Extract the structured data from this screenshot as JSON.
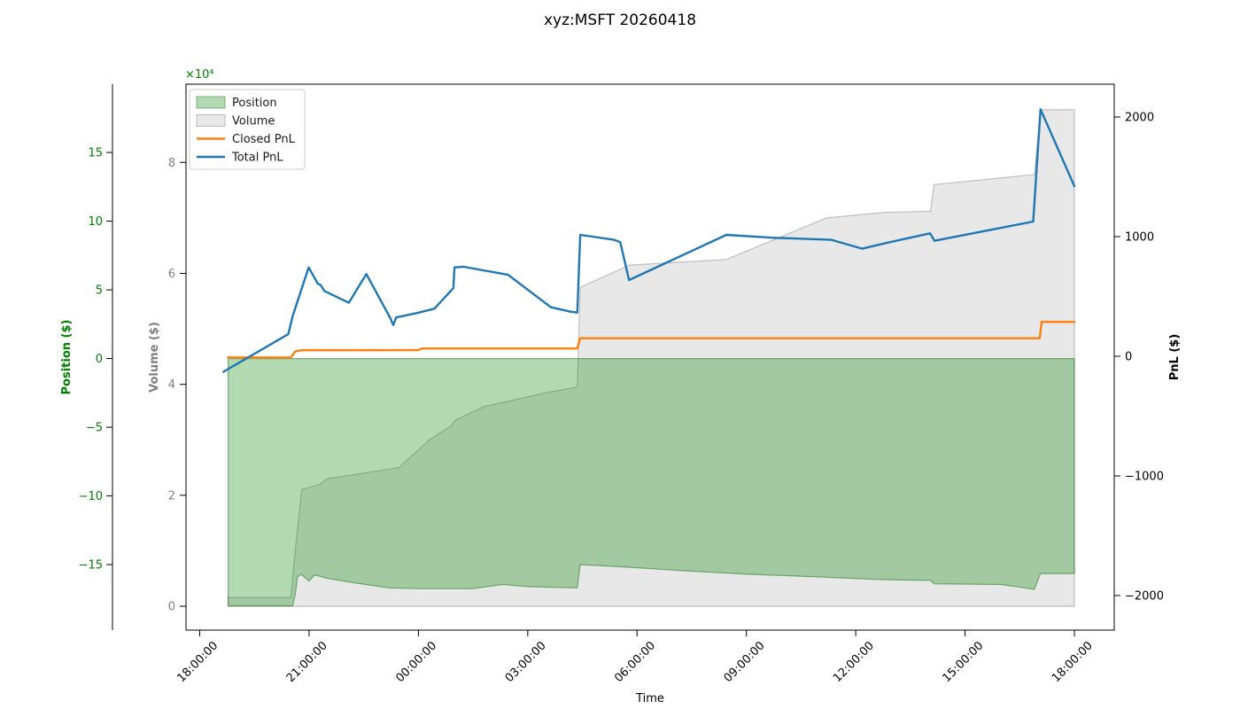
{
  "title": "xyz:MSFT 20260418",
  "chart_data": {
    "type": "area+line",
    "time_note": "x values are hours after midnight of day 1; 42.0 = 18:00:00 next day",
    "axes": {
      "x": {
        "label": "Time",
        "domain": [
          17.623,
          43.093
        ],
        "ticks": [
          [
            18,
            "18:00:00"
          ],
          [
            21,
            "21:00:00"
          ],
          [
            24,
            "00:00:00"
          ],
          [
            27,
            "03:00:00"
          ],
          [
            30,
            "06:00:00"
          ],
          [
            33,
            "09:00:00"
          ],
          [
            36,
            "12:00:00"
          ],
          [
            39,
            "15:00:00"
          ],
          [
            42,
            "18:00:00"
          ]
        ]
      },
      "position": {
        "label": "Position ($)",
        "color": "#008000",
        "domain": [
          -19.77,
          19.97
        ],
        "ticks": [
          [
            -15,
            "−15"
          ],
          [
            -10,
            "−10"
          ],
          [
            -5,
            "−5"
          ],
          [
            0,
            "0"
          ],
          [
            5,
            "5"
          ],
          [
            10,
            "10"
          ],
          [
            15,
            "15"
          ]
        ]
      },
      "volume": {
        "label": "Volume ($)",
        "color": "#808080",
        "domain": [
          -0.43,
          9.41
        ],
        "offset_text": "×10⁴",
        "offset_color": "#008000",
        "ticks": [
          [
            0,
            "0"
          ],
          [
            2,
            "2"
          ],
          [
            4,
            "4"
          ],
          [
            6,
            "6"
          ],
          [
            8,
            "8"
          ]
        ]
      },
      "pnl": {
        "label": "PnL ($)",
        "color": "#000000",
        "domain": [
          -2289,
          2274
        ],
        "ticks": [
          [
            -2000,
            "−2000"
          ],
          [
            -1000,
            "−1000"
          ],
          [
            0,
            "0"
          ],
          [
            1000,
            "1000"
          ],
          [
            2000,
            "2000"
          ]
        ]
      }
    },
    "series": [
      {
        "name": "Volume",
        "kind": "area",
        "axis": "volume",
        "baseline": 0,
        "fill": "rgba(128,128,128,0.18)",
        "stroke": "rgba(128,128,128,0.45)",
        "stroke_width": 1.2,
        "points": [
          [
            18.78,
            0.16
          ],
          [
            20.5,
            0.16
          ],
          [
            20.62,
            1.0
          ],
          [
            20.8,
            2.1
          ],
          [
            21.3,
            2.2
          ],
          [
            21.5,
            2.3
          ],
          [
            23.0,
            2.45
          ],
          [
            23.47,
            2.5
          ],
          [
            23.8,
            2.7
          ],
          [
            24.3,
            3.0
          ],
          [
            24.9,
            3.25
          ],
          [
            25.0,
            3.35
          ],
          [
            25.8,
            3.6
          ],
          [
            26.5,
            3.7
          ],
          [
            27.5,
            3.85
          ],
          [
            28.36,
            3.95
          ],
          [
            28.44,
            5.75
          ],
          [
            29.8,
            6.15
          ],
          [
            32.45,
            6.25
          ],
          [
            35.2,
            7.0
          ],
          [
            36.8,
            7.1
          ],
          [
            38.05,
            7.12
          ],
          [
            38.15,
            7.6
          ],
          [
            40.9,
            7.78
          ],
          [
            41.07,
            8.95
          ],
          [
            42.0,
            8.95
          ]
        ]
      },
      {
        "name": "Position",
        "kind": "area",
        "axis": "position",
        "baseline": 0,
        "fill": "rgba(0,128,0,0.30)",
        "stroke": "rgba(0,105,0,0.45)",
        "stroke_width": 1.2,
        "points": [
          [
            18.78,
            -18.0
          ],
          [
            20.55,
            -18.0
          ],
          [
            20.62,
            -17.2
          ],
          [
            20.68,
            -15.9
          ],
          [
            20.78,
            -15.7
          ],
          [
            21.0,
            -16.2
          ],
          [
            21.15,
            -15.75
          ],
          [
            21.5,
            -16.0
          ],
          [
            22.3,
            -16.35
          ],
          [
            23.2,
            -16.7
          ],
          [
            24.0,
            -16.75
          ],
          [
            25.5,
            -16.75
          ],
          [
            26.3,
            -16.45
          ],
          [
            27.0,
            -16.6
          ],
          [
            28.36,
            -16.7
          ],
          [
            28.44,
            -15.0
          ],
          [
            29.5,
            -15.15
          ],
          [
            31.0,
            -15.4
          ],
          [
            33.0,
            -15.7
          ],
          [
            35.0,
            -15.9
          ],
          [
            36.8,
            -16.1
          ],
          [
            38.05,
            -16.15
          ],
          [
            38.15,
            -16.4
          ],
          [
            40.0,
            -16.45
          ],
          [
            40.9,
            -16.8
          ],
          [
            41.07,
            -15.65
          ],
          [
            42.0,
            -15.65
          ]
        ]
      },
      {
        "name": "Closed PnL",
        "kind": "line",
        "axis": "pnl",
        "stroke": "#ff7f0e",
        "stroke_width": 2.4,
        "points": [
          [
            18.77,
            -10
          ],
          [
            20.5,
            -10
          ],
          [
            20.62,
            40
          ],
          [
            20.8,
            50
          ],
          [
            24.0,
            52
          ],
          [
            24.1,
            65
          ],
          [
            28.36,
            65
          ],
          [
            28.44,
            150
          ],
          [
            41.05,
            150
          ],
          [
            41.1,
            287
          ],
          [
            42.0,
            287
          ]
        ]
      },
      {
        "name": "Total PnL",
        "kind": "line",
        "axis": "pnl",
        "stroke": "#1f77b4",
        "stroke_width": 2.4,
        "points": [
          [
            18.65,
            -130
          ],
          [
            20.43,
            185
          ],
          [
            20.55,
            335
          ],
          [
            20.99,
            743
          ],
          [
            21.24,
            607
          ],
          [
            21.32,
            595
          ],
          [
            21.42,
            546
          ],
          [
            22.09,
            447
          ],
          [
            22.57,
            687
          ],
          [
            23.22,
            324
          ],
          [
            23.31,
            261
          ],
          [
            23.39,
            324
          ],
          [
            23.95,
            361
          ],
          [
            24.44,
            398
          ],
          [
            24.96,
            570
          ],
          [
            24.99,
            743
          ],
          [
            25.24,
            748
          ],
          [
            26.46,
            681
          ],
          [
            27.63,
            410
          ],
          [
            28.16,
            373
          ],
          [
            28.36,
            365
          ],
          [
            28.44,
            1015
          ],
          [
            29.37,
            973
          ],
          [
            29.54,
            953
          ],
          [
            29.78,
            637
          ],
          [
            32.45,
            1015
          ],
          [
            33.75,
            990
          ],
          [
            35.33,
            973
          ],
          [
            36.18,
            899
          ],
          [
            36.82,
            946
          ],
          [
            38.04,
            1027
          ],
          [
            38.16,
            965
          ],
          [
            40.87,
            1126
          ],
          [
            41.07,
            2064
          ],
          [
            42.0,
            1422
          ]
        ]
      }
    ],
    "legend": {
      "position": "upper-left",
      "items": [
        {
          "label": "Position",
          "swatch": "patch",
          "fill": "rgba(0,128,0,0.30)",
          "stroke": "rgba(0,105,0,0.45)"
        },
        {
          "label": "Volume",
          "swatch": "patch",
          "fill": "rgba(128,128,128,0.18)",
          "stroke": "rgba(128,128,128,0.5)"
        },
        {
          "label": "Closed PnL",
          "swatch": "line",
          "stroke": "#ff7f0e"
        },
        {
          "label": "Total PnL",
          "swatch": "line",
          "stroke": "#1f77b4"
        }
      ]
    },
    "grid": false
  }
}
